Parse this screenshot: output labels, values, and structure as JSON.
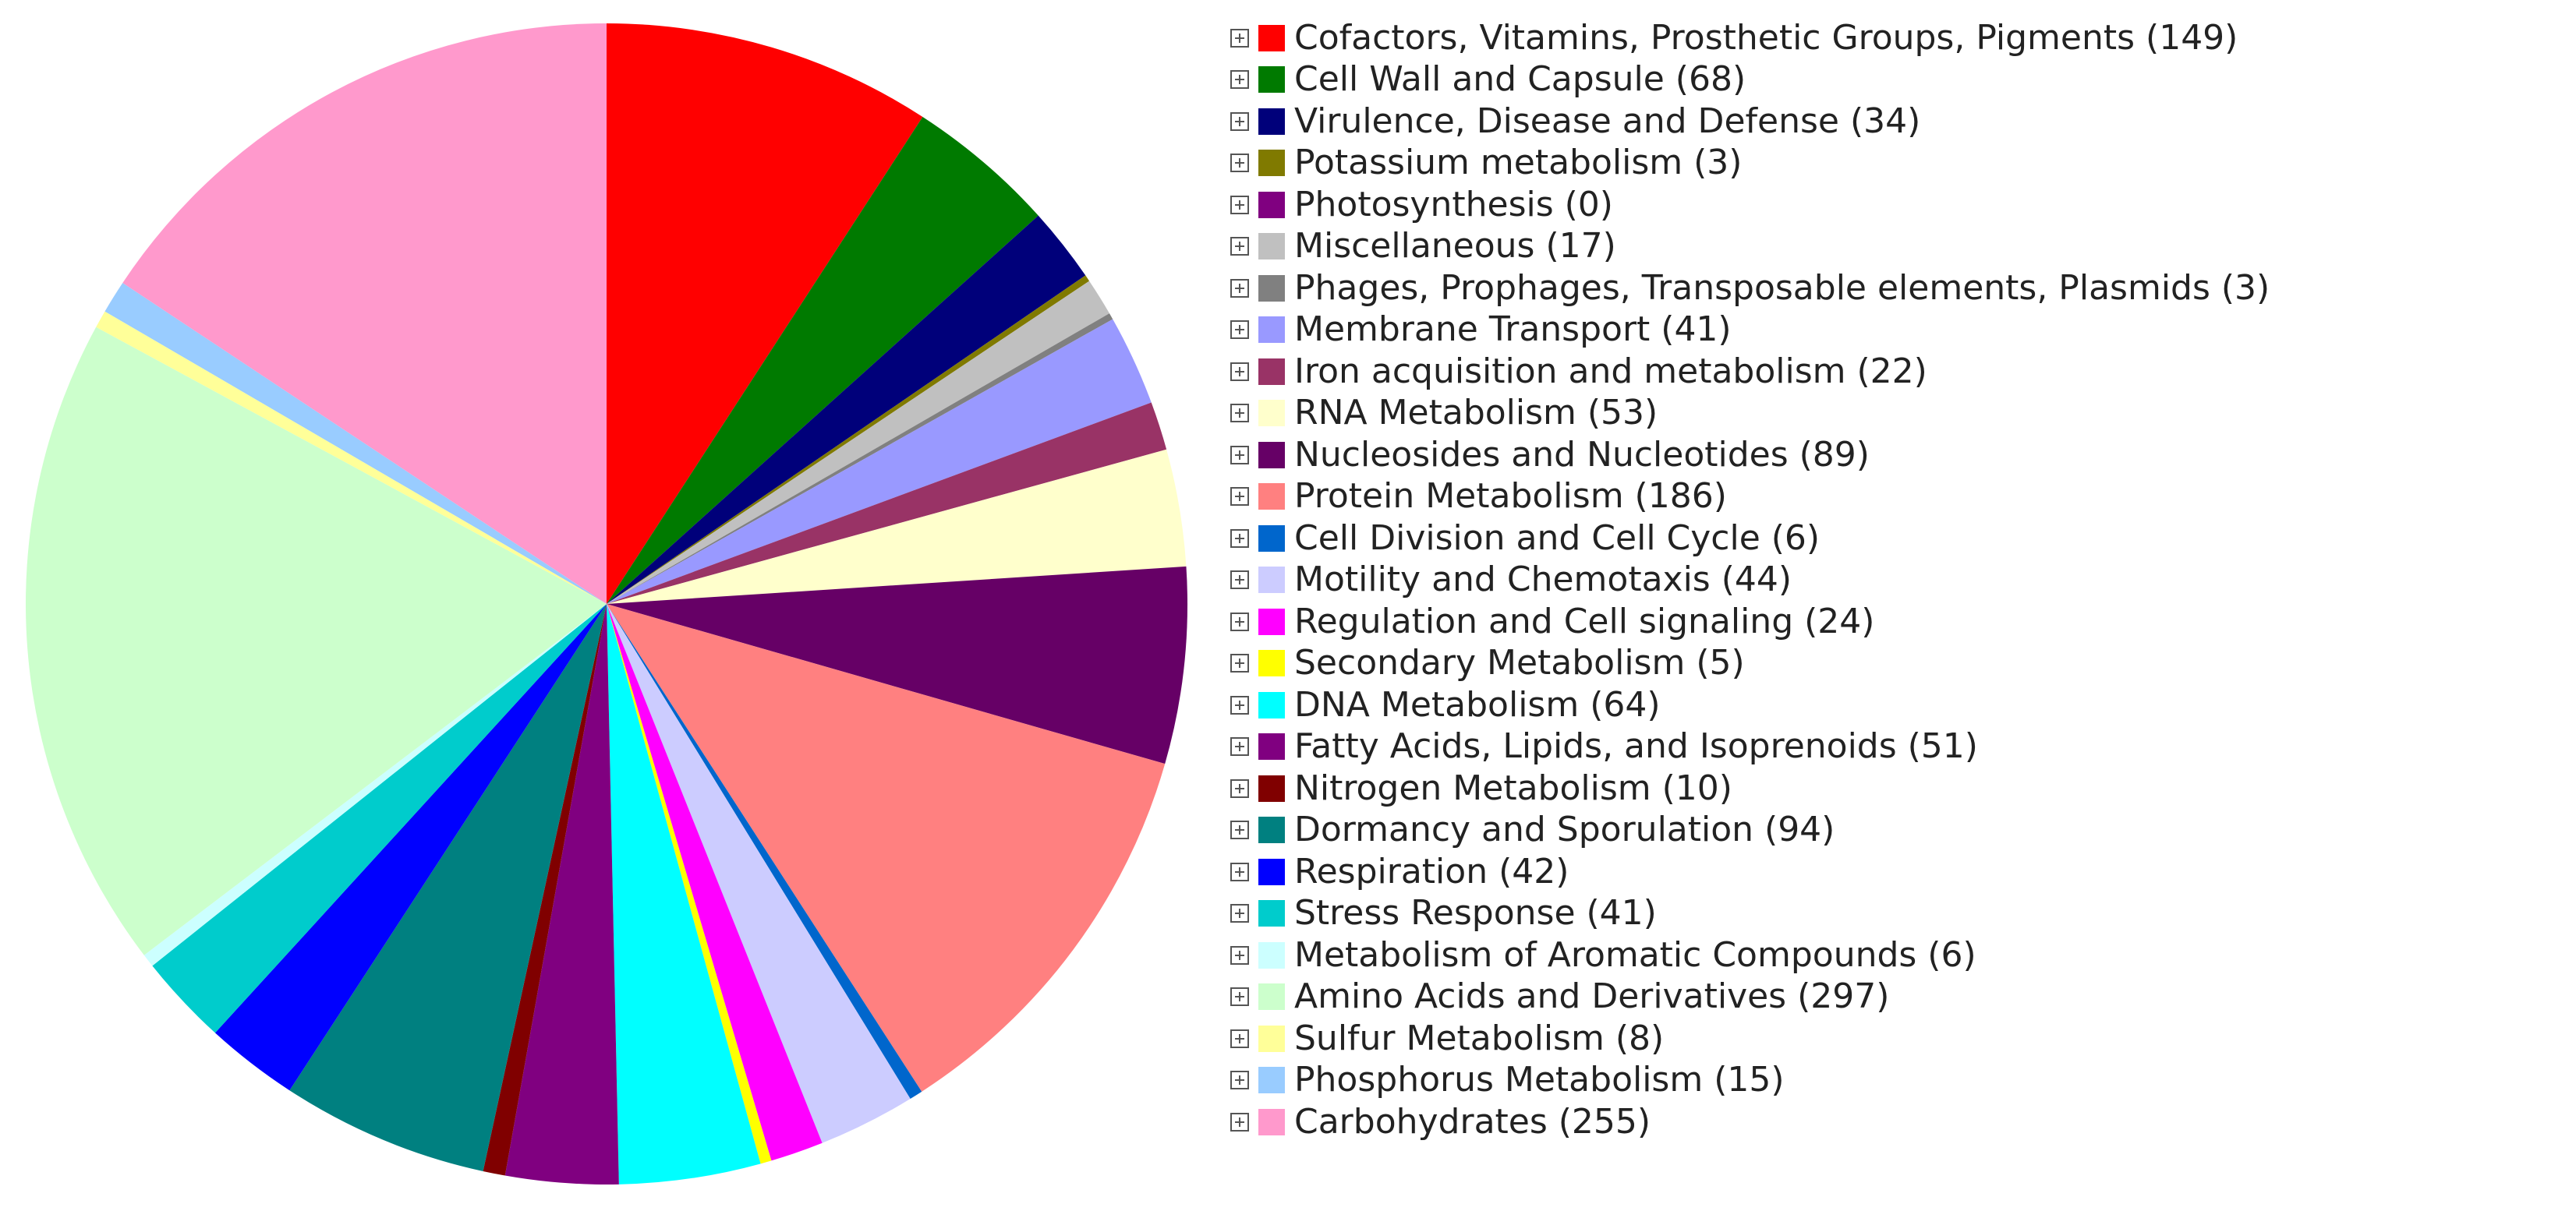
{
  "chart_data": {
    "type": "pie",
    "title": "",
    "categories": [
      "Cofactors, Vitamins, Prosthetic Groups, Pigments (149)",
      "Cell Wall and Capsule (68)",
      "Virulence, Disease and Defense (34)",
      "Potassium metabolism (3)",
      "Photosynthesis (0)",
      "Miscellaneous (17)",
      "Phages, Prophages, Transposable elements, Plasmids (3)",
      "Membrane Transport (41)",
      "Iron acquisition and metabolism (22)",
      "RNA Metabolism (53)",
      "Nucleosides and Nucleotides (89)",
      "Protein Metabolism (186)",
      "Cell Division and Cell Cycle (6)",
      "Motility and Chemotaxis (44)",
      "Regulation and Cell signaling (24)",
      "Secondary Metabolism (5)",
      "DNA Metabolism (64)",
      "Fatty Acids, Lipids, and Isoprenoids (51)",
      "Nitrogen Metabolism (10)",
      "Dormancy and Sporulation (94)",
      "Respiration (42)",
      "Stress Response (41)",
      "Metabolism of Aromatic Compounds (6)",
      "Amino Acids and Derivatives (297)",
      "Sulfur Metabolism (8)",
      "Phosphorus Metabolism (15)",
      "Carbohydrates (255)"
    ],
    "values": [
      149,
      68,
      34,
      3,
      0,
      17,
      3,
      41,
      22,
      53,
      89,
      186,
      6,
      44,
      24,
      5,
      64,
      51,
      10,
      94,
      42,
      41,
      6,
      297,
      8,
      15,
      255
    ],
    "colors": [
      "#ff0000",
      "#007a00",
      "#00007a",
      "#807a00",
      "#800080",
      "#c0c0c0",
      "#808080",
      "#9999ff",
      "#993366",
      "#ffffcc",
      "#660066",
      "#ff8080",
      "#0066cc",
      "#ccccff",
      "#ff00ff",
      "#ffff00",
      "#00ffff",
      "#800080",
      "#800000",
      "#008080",
      "#0000ff",
      "#00cccc",
      "#ccffff",
      "#ccffcc",
      "#ffff99",
      "#99ccff",
      "#ff99cc"
    ],
    "legend_position": "right",
    "start_angle": "12 o'clock, clockwise"
  }
}
